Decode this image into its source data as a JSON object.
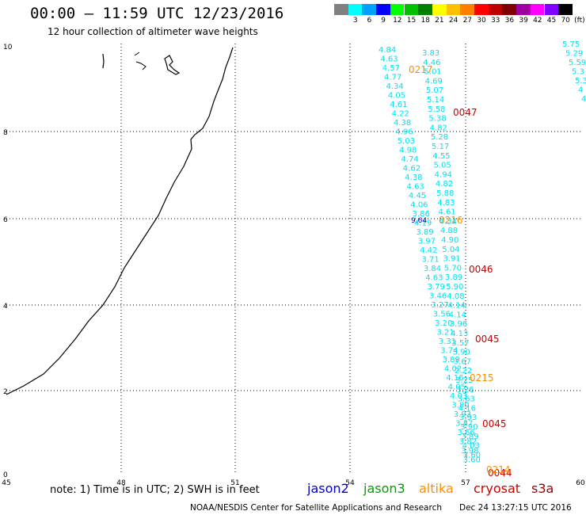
{
  "title": "00:00 – 11:59 UTC 12/23/2016",
  "subtitle": "12 hour collection of altimeter wave heights",
  "colorbar": {
    "colors": [
      "#808080",
      "#00ffff",
      "#00a0ff",
      "#0000ff",
      "#00ff00",
      "#00c000",
      "#008000",
      "#ffff00",
      "#ffc000",
      "#ff8000",
      "#ff0000",
      "#c00000",
      "#800000",
      "#a000a0",
      "#ff00ff",
      "#8000ff",
      "#000000"
    ],
    "labels": [
      "",
      "3",
      "6",
      "9",
      "12",
      "15",
      "18",
      "21",
      "24",
      "27",
      "30",
      "33",
      "36",
      "39",
      "42",
      "45",
      "70"
    ],
    "unit": "(ft)"
  },
  "axes": {
    "x_ticks": [
      "45",
      "48",
      "51",
      "54",
      "57",
      "60"
    ],
    "y_ticks": [
      "10",
      "8",
      "6",
      "4",
      "2",
      "0"
    ]
  },
  "note": "note: 1) Time is in UTC; 2) SWH is in feet",
  "satellites": [
    {
      "name": "jason2",
      "color": "#0000cc"
    },
    {
      "name": "jason3",
      "color": "#00a000"
    },
    {
      "name": "altika",
      "color": "#ff8c00"
    },
    {
      "name": "cryosat",
      "color": "#cc0000"
    },
    {
      "name": "s3a",
      "color": "#990000"
    }
  ],
  "credit": "NOAA/NESDIS Center for Satellite Applications and Research",
  "timestamp": "Dec 24 13:27:15 UTC 2016",
  "track_left": {
    "color": "#00e0f0",
    "values": [
      "4.84",
      "4.63",
      "4.57",
      "4.77",
      "4.34",
      "4.05",
      "4.61",
      "4.22",
      "4.38",
      "4.96",
      "5.03",
      "4.98",
      "4.74",
      "4.62",
      "4.38",
      "4.63",
      "4.45",
      "4.06",
      "3.86",
      "4.19",
      "3.89",
      "3.97",
      "4.42",
      "3.71",
      "3.84",
      "4.63",
      "3.79",
      "3.46",
      "3.27",
      "3.56",
      "3.20",
      "3.21",
      "3.31",
      "3.74",
      "3.89",
      "4.02",
      "4.16",
      "4.05",
      "4.03",
      "3.80",
      "3.93",
      "3.87",
      "3.66",
      "3.82",
      "3.98",
      "3.60"
    ]
  },
  "track_right": {
    "color": "#00e0f0",
    "values": [
      "3.83",
      "4.46",
      "5.01",
      "4.69",
      "5.07",
      "5.14",
      "5.58",
      "5.38",
      "4.82",
      "5.28",
      "5.17",
      "4.55",
      "5.05",
      "4.94",
      "4.82",
      "5.88",
      "4.83",
      "4.61",
      "4.34",
      "4.88",
      "4.90",
      "5.04",
      "3.91",
      "5.70",
      "3.89",
      "5.90",
      "4.08",
      "4.14",
      "4.14",
      "3.96",
      "4.13",
      "3.57",
      "3.90",
      "3.67",
      "2.22",
      "3.25",
      "3.26",
      "3.63",
      "4.16",
      "3.93",
      "3.90",
      "3.89",
      "4.03",
      "3.60"
    ]
  },
  "track_far_right": {
    "color": "#00e0f0",
    "values": [
      "5.75",
      "5.29",
      "5.59",
      "5.3",
      "5.3",
      "4",
      "4"
    ]
  },
  "special_value": {
    "value": "9.64",
    "color": "#0000cc"
  },
  "time_labels": [
    {
      "text": "0217",
      "color": "#ff8c00"
    },
    {
      "text": "0047",
      "color": "#cc0000"
    },
    {
      "text": "0216",
      "color": "#ff8c00"
    },
    {
      "text": "0046",
      "color": "#cc0000"
    },
    {
      "text": "0045",
      "color": "#cc0000"
    },
    {
      "text": "0215",
      "color": "#ff8c00"
    },
    {
      "text": "0045",
      "color": "#cc0000"
    },
    {
      "text": "0044",
      "color": "#cc0000"
    },
    {
      "text": "0214",
      "color": "#ff8c00"
    }
  ]
}
